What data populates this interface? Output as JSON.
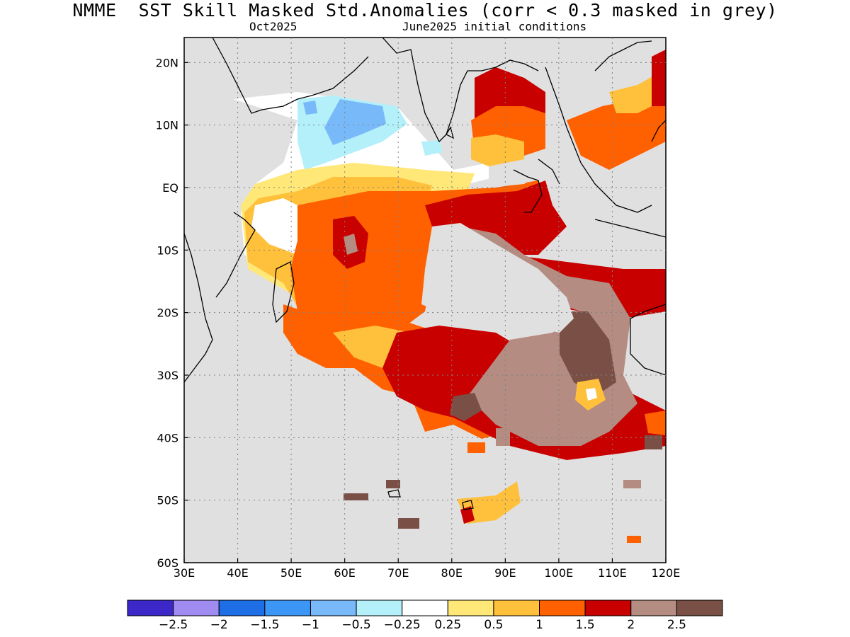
{
  "title": "NMME  SST Skill Masked Std.Anomalies (corr < 0.3 masked in grey)",
  "subtitle_left": "Oct2025",
  "subtitle_right": "June2025 initial conditions",
  "map": {
    "lon_range": [
      30,
      120
    ],
    "lat_range": [
      -60,
      24
    ],
    "lon_ticks": [
      {
        "value": 30,
        "label": "30E"
      },
      {
        "value": 40,
        "label": "40E"
      },
      {
        "value": 50,
        "label": "50E"
      },
      {
        "value": 60,
        "label": "60E"
      },
      {
        "value": 70,
        "label": "70E"
      },
      {
        "value": 80,
        "label": "80E"
      },
      {
        "value": 90,
        "label": "90E"
      },
      {
        "value": 100,
        "label": "100E"
      },
      {
        "value": 110,
        "label": "110E"
      },
      {
        "value": 120,
        "label": "120E"
      }
    ],
    "lat_ticks": [
      {
        "value": 20,
        "label": "20N"
      },
      {
        "value": 10,
        "label": "10N"
      },
      {
        "value": 0,
        "label": "EQ"
      },
      {
        "value": -10,
        "label": "10S"
      },
      {
        "value": -20,
        "label": "20S"
      },
      {
        "value": -30,
        "label": "30S"
      },
      {
        "value": -40,
        "label": "40S"
      },
      {
        "value": -50,
        "label": "50S"
      },
      {
        "value": -60,
        "label": "60S"
      }
    ],
    "colors": {
      "mask_grey": "#e0e0e0",
      "neg_0_25": "#b4f0fa",
      "neg_0_5": "#78b9fa",
      "neg_1": "#3c96f5",
      "pos_0_25": "#ffe878",
      "pos_0_5": "#ffc03c",
      "pos_1": "#ff6000",
      "pos_1_5": "#c80000",
      "pos_2": "#b48c82",
      "pos_2_5": "#7a5046"
    }
  },
  "colorbar": {
    "colors": [
      "#3c28c8",
      "#a08cf0",
      "#1e6ee6",
      "#3c96f5",
      "#78b9fa",
      "#b4f0fa",
      "#ffffff",
      "#ffe878",
      "#ffc03c",
      "#ff6000",
      "#c80000",
      "#b48c82",
      "#7a5046"
    ],
    "labels": [
      "−2.5",
      "−2",
      "−1.5",
      "−1",
      "−0.5",
      "−0.25",
      "0.25",
      "0.5",
      "1",
      "1.5",
      "2",
      "2.5"
    ]
  }
}
